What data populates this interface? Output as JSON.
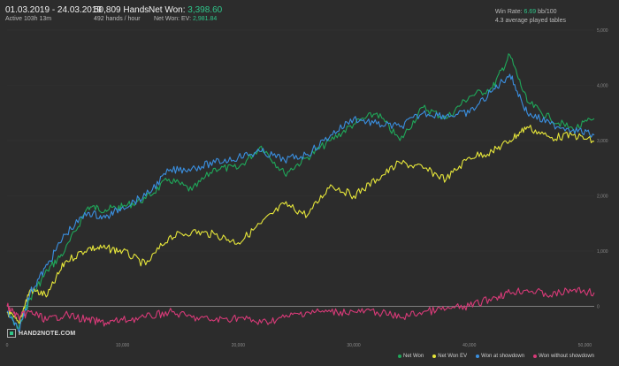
{
  "header": {
    "date_range": "01.03.2019 - 24.03.2019",
    "active": "Active 103h 13m",
    "hands": "50,809 Hands",
    "hands_rate": "492 hands / hour",
    "net_won_label": "Net Won:",
    "net_won_value": "3,398.60",
    "net_won_ev_label": "Net Won: EV:",
    "net_won_ev_value": "2,981.84",
    "win_rate_label": "Win Rate:",
    "win_rate_value": "6.69",
    "win_rate_unit": "bb/100",
    "avg_tables": "4.3 average played tables"
  },
  "logo": {
    "text": "HAND2NOTE.COM"
  },
  "colors": {
    "net_won": "#1fa85a",
    "net_won_ev": "#e6e63a",
    "won_showdown": "#3a8fe0",
    "won_without_showdown": "#d83a78",
    "accent": "#2fc58a"
  },
  "legend": [
    {
      "label": "Net Won",
      "color": "#1fa85a"
    },
    {
      "label": "Net Won EV",
      "color": "#e6e63a"
    },
    {
      "label": "Won at showdown",
      "color": "#3a8fe0"
    },
    {
      "label": "Won without showdown",
      "color": "#d83a78"
    }
  ],
  "chart_data": {
    "type": "line",
    "x_ticks": [
      "0",
      "10,000",
      "20,000",
      "30,000",
      "40,000",
      "50,000"
    ],
    "y_ticks": [
      "0",
      "1,000",
      "2,000",
      "3,000",
      "4,000",
      "5,000"
    ],
    "xlim": [
      0,
      50809
    ],
    "ylim": [
      -600,
      5000
    ],
    "series": [
      {
        "name": "Net Won",
        "x": [
          0,
          1000,
          2000,
          3500,
          5000,
          7000,
          8500,
          10000,
          12000,
          14000,
          16000,
          18000,
          20000,
          22000,
          24000,
          26000,
          28000,
          30000,
          32000,
          34000,
          36000,
          38000,
          40000,
          42000,
          43500,
          45000,
          47000,
          49000,
          50809
        ],
        "y": [
          -100,
          -400,
          150,
          650,
          1000,
          1800,
          1750,
          1800,
          1950,
          2300,
          2100,
          2500,
          2500,
          2900,
          2400,
          2700,
          3000,
          3300,
          3500,
          3000,
          3600,
          3400,
          3800,
          3950,
          4550,
          3700,
          3400,
          3200,
          3398
        ]
      },
      {
        "name": "Net Won EV",
        "x": [
          0,
          1000,
          2000,
          3500,
          5000,
          7000,
          8500,
          10000,
          12000,
          14000,
          16000,
          18000,
          20000,
          22000,
          24000,
          26000,
          28000,
          30000,
          32000,
          34000,
          36000,
          38000,
          40000,
          42000,
          43500,
          45000,
          47000,
          49000,
          50809
        ],
        "y": [
          -100,
          -300,
          300,
          200,
          800,
          1050,
          1050,
          1000,
          750,
          1250,
          1350,
          1300,
          1150,
          1500,
          1850,
          1650,
          2200,
          2000,
          2300,
          2600,
          2500,
          2300,
          2700,
          2800,
          3000,
          3250,
          3050,
          3100,
          2982
        ]
      },
      {
        "name": "Won at showdown",
        "x": [
          0,
          1000,
          2000,
          3500,
          5000,
          7000,
          8500,
          10000,
          12000,
          14000,
          16000,
          18000,
          20000,
          22000,
          24000,
          26000,
          28000,
          30000,
          32000,
          34000,
          36000,
          38000,
          40000,
          42000,
          43500,
          45000,
          47000,
          49000,
          50809
        ],
        "y": [
          -100,
          -450,
          250,
          750,
          1300,
          1700,
          1600,
          1800,
          2000,
          2450,
          2500,
          2600,
          2700,
          2800,
          2650,
          2750,
          3100,
          3400,
          3300,
          3250,
          3500,
          3450,
          3500,
          3900,
          4200,
          3500,
          3300,
          3200,
          3100
        ]
      },
      {
        "name": "Won without showdown",
        "x": [
          0,
          1000,
          2000,
          3500,
          5000,
          7000,
          8500,
          10000,
          12000,
          14000,
          16000,
          18000,
          20000,
          22000,
          24000,
          26000,
          28000,
          30000,
          32000,
          34000,
          36000,
          38000,
          40000,
          42000,
          43500,
          45000,
          47000,
          49000,
          50809
        ],
        "y": [
          0,
          -200,
          -100,
          -250,
          -150,
          -250,
          -300,
          -250,
          -200,
          -100,
          -200,
          -250,
          -200,
          -300,
          -200,
          -100,
          -100,
          -100,
          -100,
          -200,
          -100,
          -50,
          0,
          150,
          250,
          300,
          200,
          300,
          250
        ]
      }
    ]
  }
}
